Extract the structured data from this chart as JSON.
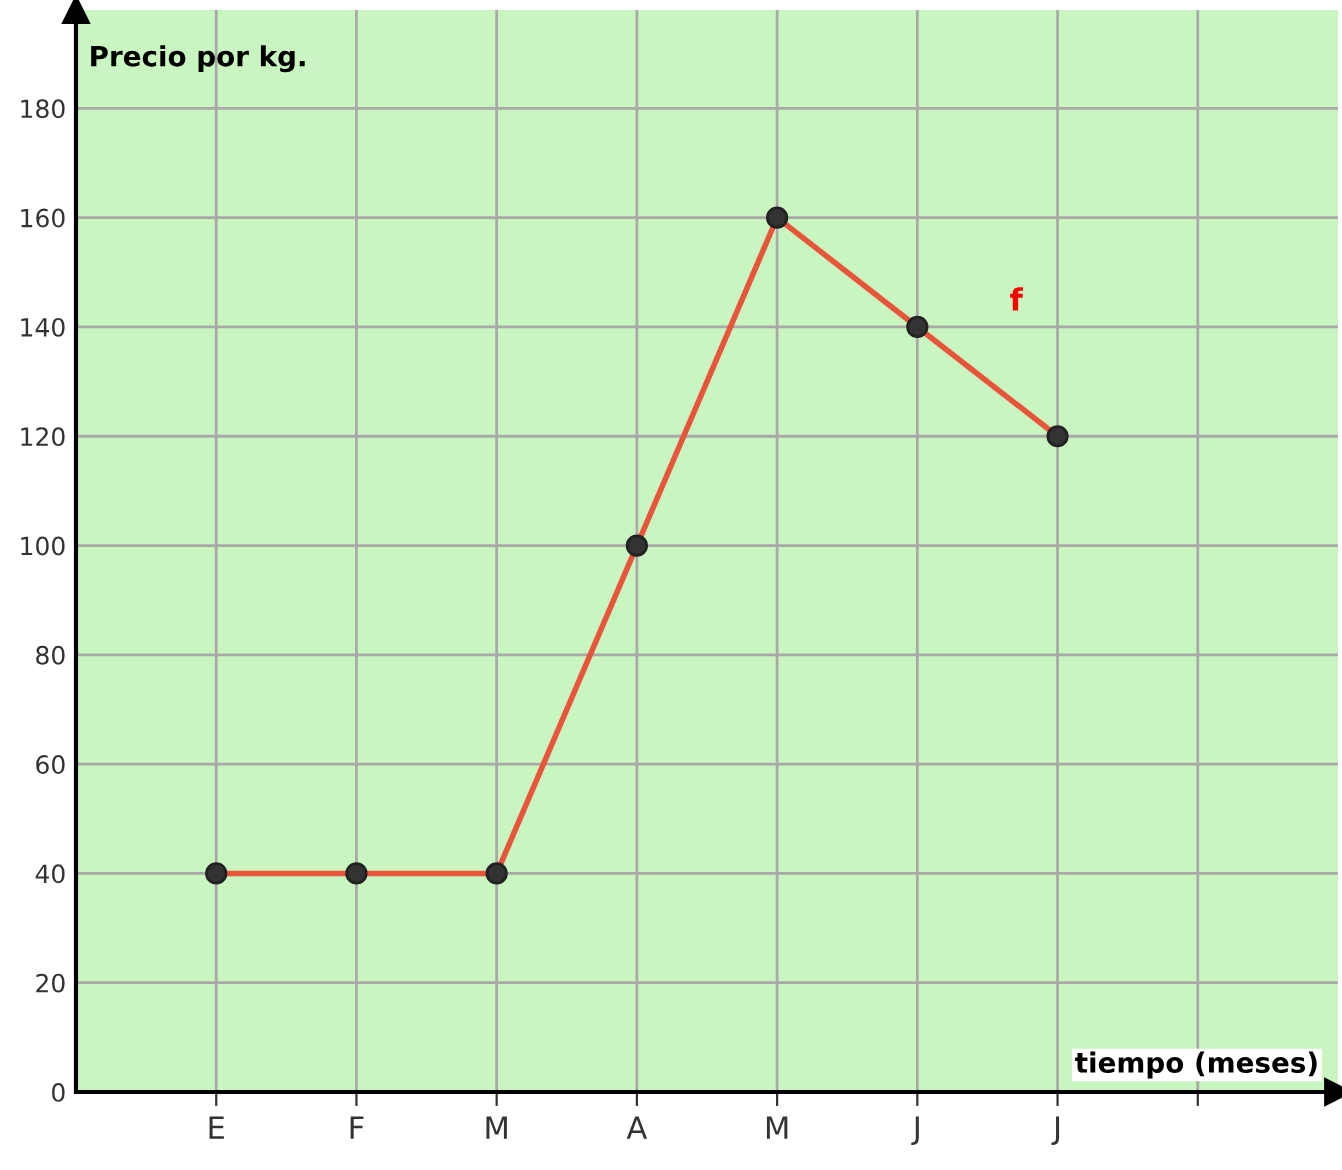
{
  "chart_data": {
    "type": "line",
    "ylabel": "Precio por kg.",
    "xlabel": "tiempo (meses)",
    "categories": [
      "E",
      "F",
      "M",
      "A",
      "M",
      "J",
      "J",
      null
    ],
    "series": [
      {
        "color": "#e8553a",
        "values": [
          40,
          40,
          40,
          100,
          160,
          140,
          120,
          null
        ]
      }
    ],
    "ylim": [
      0,
      198
    ],
    "yticks": [
      0,
      20,
      40,
      60,
      80,
      100,
      120,
      140,
      160,
      180
    ],
    "annotations": [
      "f"
    ],
    "grid": true,
    "marker": "circle",
    "line_style": "solid"
  }
}
